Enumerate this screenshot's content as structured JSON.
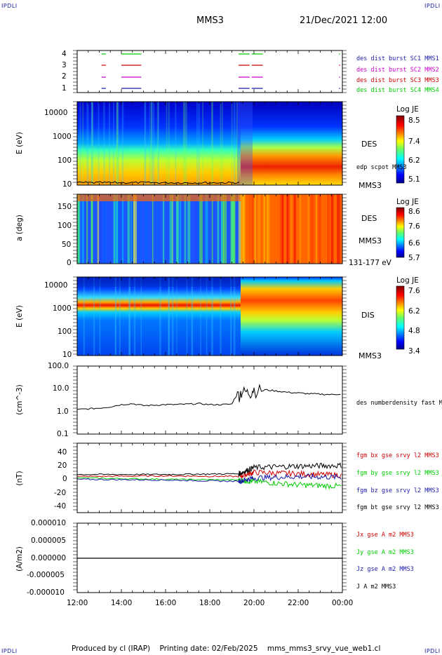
{
  "header": {
    "corner_tl": "IPDLI",
    "corner_tr": "IPDLI",
    "corner_bl": "IPDLI",
    "corner_br": "IPDLI",
    "spacecraft": "MMS3",
    "datetime": "21/Dec/2021 12:00"
  },
  "footer": {
    "text": "Produced by cl (IRAP)    Printing date: 02/Feb/2025    mms_mms3_srvy_vue_web1.cl"
  },
  "colors": {
    "mms1": "#1a1aa8",
    "mms2": "#cc00cc",
    "mms3": "#cc0000",
    "mms4": "#00cc00",
    "black": "#000000"
  },
  "chart_data": [
    {
      "type": "timeline",
      "panel": "burst",
      "yticks": [
        "1",
        "2",
        "3",
        "4"
      ],
      "series": [
        {
          "name": "des dist burst SC1 MMS1",
          "level": 1,
          "intervals": [
            [
              13.1,
              13.3
            ],
            [
              14.0,
              14.9
            ],
            [
              19.3,
              19.8
            ],
            [
              19.9,
              20.4
            ]
          ]
        },
        {
          "name": "des dist burst SC2 MMS2",
          "level": 2,
          "intervals": [
            [
              13.1,
              13.3
            ],
            [
              14.0,
              14.9
            ],
            [
              19.3,
              19.8
            ],
            [
              19.9,
              20.4
            ]
          ]
        },
        {
          "name": "des dist burst SC3 MMS3",
          "level": 3,
          "intervals": [
            [
              13.1,
              13.3
            ],
            [
              14.0,
              14.9
            ],
            [
              19.3,
              19.8
            ],
            [
              19.9,
              20.4
            ]
          ]
        },
        {
          "name": "des dist burst SC4 MMS4",
          "level": 4,
          "intervals": [
            [
              13.1,
              13.3
            ],
            [
              14.0,
              14.9
            ],
            [
              19.3,
              19.8
            ],
            [
              19.9,
              20.4
            ]
          ]
        }
      ]
    },
    {
      "type": "heatmap",
      "panel": "des-energy",
      "ylabel": "E (eV)",
      "yticks": [
        "10000",
        "1000",
        "100",
        "10"
      ],
      "label": "DES",
      "sublabel": "MMS3",
      "overlay": "edp scpot MMS3",
      "colorbar": {
        "title": "Log JE",
        "ticks": [
          "8.5",
          "7.4",
          "6.2",
          "5.1"
        ]
      }
    },
    {
      "type": "heatmap",
      "panel": "des-pitch",
      "ylabel": "a (deg)",
      "yticks": [
        "150",
        "100",
        "50",
        "0"
      ],
      "label": "DES",
      "sublabel": "MMS3",
      "range_label": "131-177 eV",
      "colorbar": {
        "title": "Log JE",
        "ticks": [
          "8.6",
          "7.6",
          "6.6",
          "5.7"
        ]
      }
    },
    {
      "type": "heatmap",
      "panel": "dis-energy",
      "ylabel": "E (eV)",
      "yticks": [
        "10000",
        "1000",
        "100",
        "10"
      ],
      "label": "DIS",
      "sublabel": "MMS3",
      "colorbar": {
        "title": "Log JE",
        "ticks": [
          "7.6",
          "6.2",
          "4.8",
          "3.4"
        ]
      }
    },
    {
      "type": "line",
      "panel": "density",
      "ylabel": "(cm^-3)",
      "yscale": "log",
      "yticks": [
        "100.0",
        "10.0",
        "1.0",
        "0.1"
      ],
      "ylim": [
        0.1,
        100
      ],
      "series": [
        {
          "name": "des numberdensity fast M",
          "x": [
            12.0,
            12.5,
            13.0,
            13.5,
            14.0,
            14.5,
            15.0,
            15.5,
            16.0,
            16.5,
            17.0,
            17.5,
            18.0,
            18.5,
            19.0,
            19.3,
            19.5,
            19.8,
            20.0,
            20.5,
            21.0,
            21.5,
            22.0,
            22.5,
            23.0,
            23.5,
            24.0
          ],
          "y": [
            1.2,
            1.3,
            1.4,
            1.6,
            2.0,
            2.2,
            1.8,
            1.9,
            2.0,
            2.0,
            2.1,
            2.2,
            2.0,
            2.0,
            2.1,
            6.0,
            8.0,
            6.5,
            10.0,
            9.0,
            8.0,
            7.0,
            6.5,
            6.0,
            5.8,
            5.5,
            6.0
          ]
        }
      ]
    },
    {
      "type": "line",
      "panel": "fgm",
      "ylabel": "(nT)",
      "yticks": [
        "40",
        "20",
        "0",
        "-20",
        "-40"
      ],
      "ylim": [
        -50,
        50
      ],
      "series": [
        {
          "name": "fgm bx gse srvy l2 MMS3",
          "x": [
            12,
            16,
            19.3,
            20,
            22,
            24
          ],
          "y": [
            2,
            3,
            2,
            8,
            6,
            4
          ]
        },
        {
          "name": "fgm by gse srvy l2 MMS3",
          "x": [
            12,
            16,
            19.3,
            20,
            22,
            24
          ],
          "y": [
            0,
            -2,
            -3,
            -5,
            -10,
            -12
          ]
        },
        {
          "name": "fgm bz gse srvy l2 MMS3",
          "x": [
            12,
            16,
            19.3,
            20,
            22,
            24
          ],
          "y": [
            -2,
            -3,
            -5,
            0,
            2,
            1
          ]
        },
        {
          "name": "fgm bt gse srvy l2 MMS3",
          "x": [
            12,
            16,
            19.3,
            20,
            22,
            24
          ],
          "y": [
            5,
            5,
            6,
            15,
            17,
            18
          ]
        }
      ]
    },
    {
      "type": "line",
      "panel": "current",
      "ylabel": "(A/m2)",
      "yticks": [
        "0.000010",
        "0.000005",
        "0.000000",
        "-0.000005",
        "-0.000010"
      ],
      "ylim": [
        -1e-05,
        1e-05
      ],
      "series": [
        {
          "name": "Jx gse A m2 MMS3",
          "y": [
            0
          ]
        },
        {
          "name": "Jy gse A m2 MMS3",
          "y": [
            0
          ]
        },
        {
          "name": "Jz gse A m2 MMS3",
          "y": [
            0
          ]
        },
        {
          "name": "J A m2 MMS3",
          "y": [
            0
          ]
        }
      ]
    }
  ],
  "xaxis": {
    "ticks": [
      "12:00",
      "14:00",
      "16:00",
      "18:00",
      "20:00",
      "22:00",
      "00:00"
    ],
    "range": [
      12,
      24
    ]
  }
}
